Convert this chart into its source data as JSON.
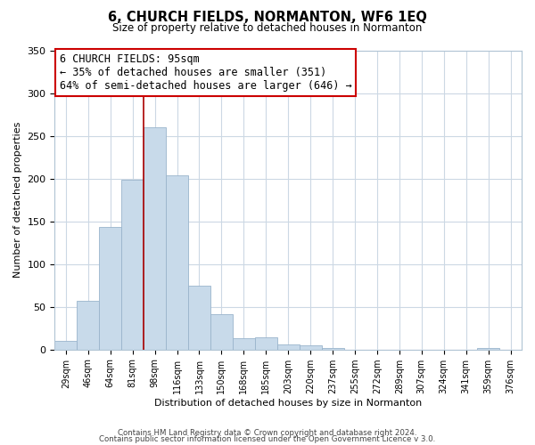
{
  "title": "6, CHURCH FIELDS, NORMANTON, WF6 1EQ",
  "subtitle": "Size of property relative to detached houses in Normanton",
  "xlabel": "Distribution of detached houses by size in Normanton",
  "ylabel": "Number of detached properties",
  "footer_line1": "Contains HM Land Registry data © Crown copyright and database right 2024.",
  "footer_line2": "Contains public sector information licensed under the Open Government Licence v 3.0.",
  "categories": [
    "29sqm",
    "46sqm",
    "64sqm",
    "81sqm",
    "98sqm",
    "116sqm",
    "133sqm",
    "150sqm",
    "168sqm",
    "185sqm",
    "203sqm",
    "220sqm",
    "237sqm",
    "255sqm",
    "272sqm",
    "289sqm",
    "307sqm",
    "324sqm",
    "341sqm",
    "359sqm",
    "376sqm"
  ],
  "values": [
    10,
    57,
    143,
    199,
    260,
    204,
    75,
    41,
    13,
    14,
    6,
    5,
    2,
    0,
    0,
    0,
    0,
    0,
    0,
    2,
    0
  ],
  "bar_color": "#c8daea",
  "bar_edge_color": "#9ab4cc",
  "vline_color": "#aa0000",
  "vline_x_index": 4,
  "annotation_title": "6 CHURCH FIELDS: 95sqm",
  "annotation_line1": "← 35% of detached houses are smaller (351)",
  "annotation_line2": "64% of semi-detached houses are larger (646) →",
  "annotation_box_edge_color": "#cc0000",
  "ylim": [
    0,
    350
  ],
  "yticks": [
    0,
    50,
    100,
    150,
    200,
    250,
    300,
    350
  ],
  "background_color": "#ffffff",
  "grid_color": "#ccd8e4"
}
